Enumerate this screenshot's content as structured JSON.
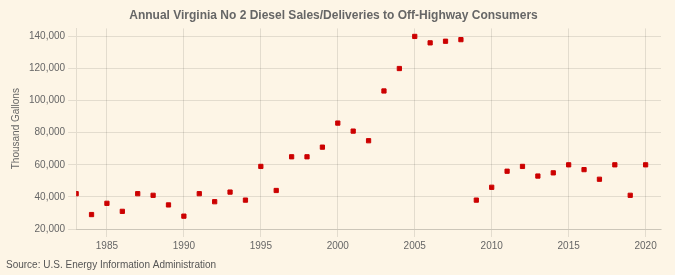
{
  "chart_data": {
    "type": "scatter",
    "title": "Annual Virginia No 2 Diesel Sales/Deliveries to Off-Highway Consumers",
    "ylabel": "Thousand Gallons",
    "annotations": [
      "Source: U.S. Energy Information Administration"
    ],
    "x": [
      1983,
      1984,
      1985,
      1986,
      1987,
      1988,
      1989,
      1990,
      1991,
      1992,
      1993,
      1994,
      1995,
      1996,
      1997,
      1998,
      1999,
      2000,
      2001,
      2002,
      2003,
      2004,
      2005,
      2006,
      2007,
      2008,
      2009,
      2010,
      2011,
      2012,
      2013,
      2014,
      2015,
      2016,
      2017,
      2018,
      2019,
      2020
    ],
    "values": [
      42000,
      29000,
      36000,
      31000,
      42000,
      41000,
      35000,
      28000,
      42000,
      37000,
      43000,
      38000,
      59000,
      44000,
      65000,
      65000,
      71000,
      86000,
      81000,
      75000,
      106000,
      120000,
      140000,
      136000,
      137000,
      138000,
      38000,
      46000,
      56000,
      59000,
      53000,
      55000,
      60000,
      57000,
      51000,
      60000,
      41000,
      60000
    ],
    "color": "#cc0000",
    "marker": "square",
    "xlim": [
      1983,
      2021
    ],
    "xticks": [
      1985,
      1990,
      1995,
      2000,
      2005,
      2010,
      2015,
      2020
    ],
    "ylim": [
      20000,
      145000
    ],
    "yticks": [
      {
        "value": 20000,
        "label": "20,000"
      },
      {
        "value": 40000,
        "label": "40,000"
      },
      {
        "value": 60000,
        "label": "60,000"
      },
      {
        "value": 80000,
        "label": "80,000"
      },
      {
        "value": 100000,
        "label": "100,000"
      },
      {
        "value": 120000,
        "label": "120,000"
      },
      {
        "value": 140000,
        "label": "140,000"
      }
    ],
    "grid": true
  }
}
